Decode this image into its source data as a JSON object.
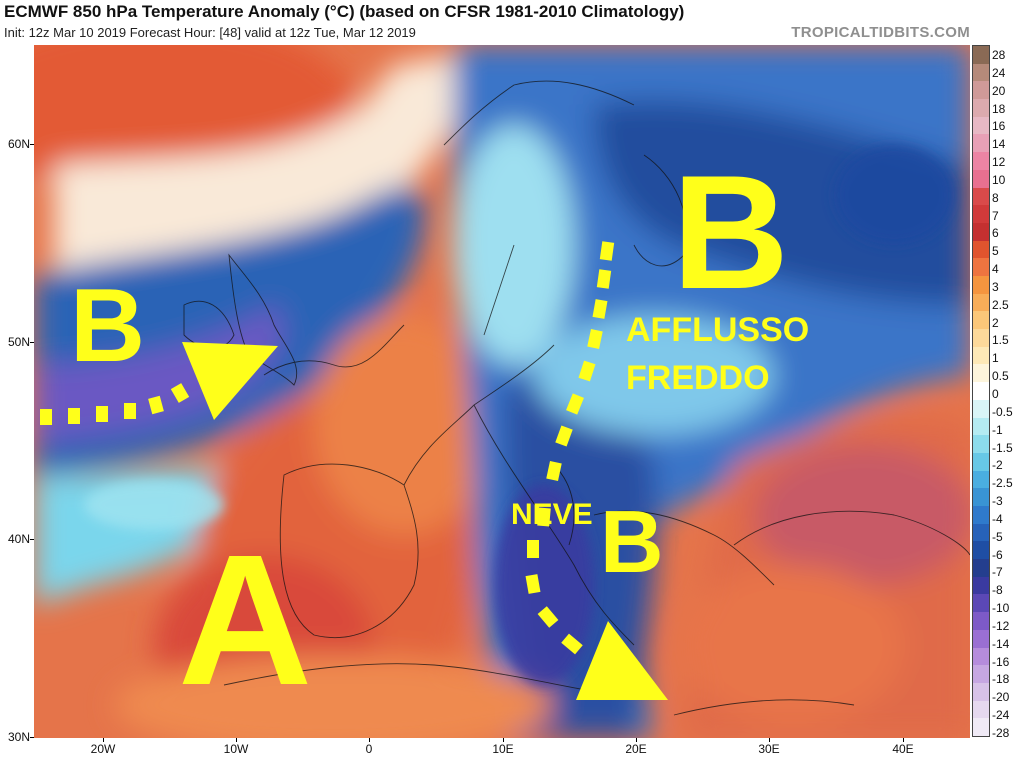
{
  "header": {
    "title": "ECMWF 850 hPa Temperature Anomaly (°C) (based on CFSR 1981-2010 Climatology)",
    "subtitle": "Init: 12z Mar 10 2019   Forecast Hour: [48]   valid at 12z Tue, Mar 12 2019",
    "watermark": "TROPICALTIDBITS.COM"
  },
  "axes": {
    "y_labels": [
      "60N",
      "50N",
      "40N",
      "30N"
    ],
    "x_labels": [
      "20W",
      "10W",
      "0",
      "10E",
      "20E",
      "30E",
      "40E"
    ]
  },
  "colorbar": {
    "labels": [
      "28",
      "24",
      "20",
      "18",
      "16",
      "14",
      "12",
      "10",
      "8",
      "7",
      "6",
      "5",
      "4",
      "3",
      "2.5",
      "2",
      "1.5",
      "1",
      "0.5",
      "0",
      "-0.5",
      "-1",
      "-1.5",
      "-2",
      "-2.5",
      "-3",
      "-4",
      "-5",
      "-6",
      "-7",
      "-8",
      "-10",
      "-12",
      "-14",
      "-16",
      "-18",
      "-20",
      "-24",
      "-28"
    ],
    "colors": [
      "#8a6a55",
      "#b58a7a",
      "#cf9a98",
      "#dcaaae",
      "#e7b8c4",
      "#e8a0b6",
      "#ec84a4",
      "#e87090",
      "#d94a4a",
      "#d03a3a",
      "#c43030",
      "#e0542e",
      "#ee7440",
      "#f5953f",
      "#f8ad58",
      "#fbc779",
      "#fcd99a",
      "#fde9b7",
      "#fdf5dc",
      "#ffffff",
      "#d9f5f7",
      "#b4ebf2",
      "#8cdcec",
      "#67c8e6",
      "#4aaee0",
      "#3994d4",
      "#2f7acc",
      "#2762b9",
      "#1f4ea4",
      "#243e8e",
      "#3a3aa0",
      "#5b48b6",
      "#7d5ac7",
      "#9a6fd3",
      "#b58cdc",
      "#c6a7e2",
      "#d7c2e8",
      "#e5d8ef",
      "#f0eaf6"
    ]
  },
  "annotations": {
    "b_west": "B",
    "b_east": "B",
    "b_south": "B",
    "a_south": "A",
    "afflusso": "AFFLUSSO",
    "freddo": "FREDDO",
    "neve": "NEVE"
  }
}
